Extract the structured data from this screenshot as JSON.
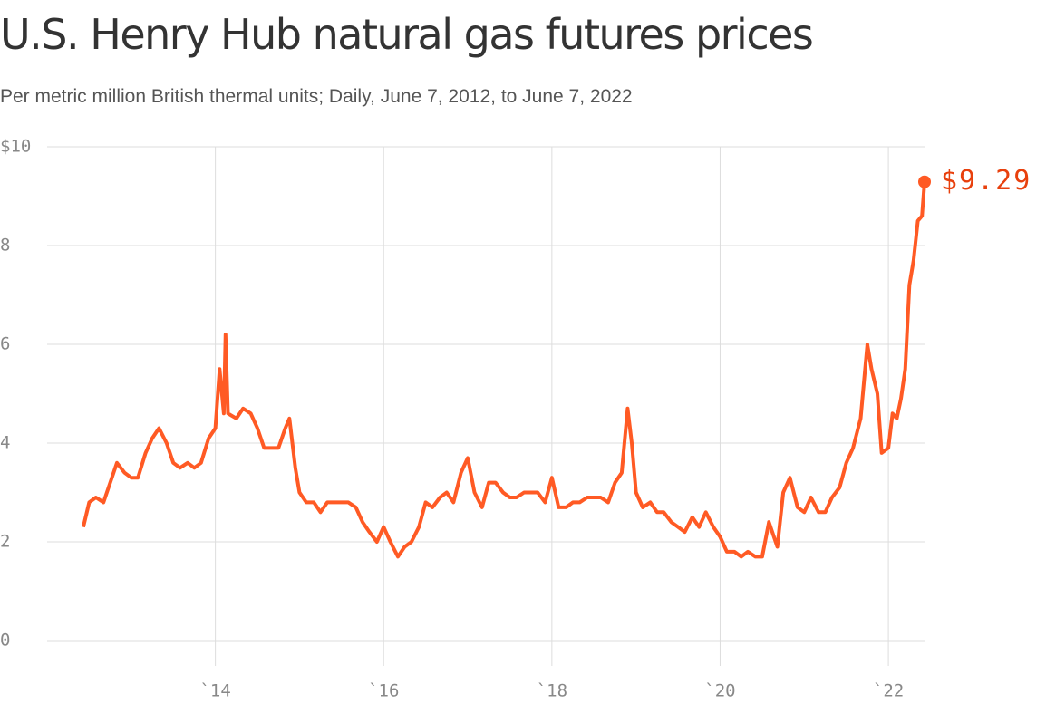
{
  "chart_data": {
    "type": "line",
    "title": "U.S. Henry Hub natural gas futures prices",
    "subtitle": "Per metric million British thermal units; Daily, June 7, 2012, to June 7, 2022",
    "x": [
      2012.43,
      2012.5,
      2012.58,
      2012.67,
      2012.75,
      2012.83,
      2012.92,
      2013.0,
      2013.08,
      2013.17,
      2013.25,
      2013.33,
      2013.42,
      2013.5,
      2013.58,
      2013.67,
      2013.75,
      2013.83,
      2013.92,
      2014.0,
      2014.05,
      2014.1,
      2014.12,
      2014.15,
      2014.25,
      2014.33,
      2014.42,
      2014.5,
      2014.58,
      2014.67,
      2014.75,
      2014.83,
      2014.88,
      2014.95,
      2015.0,
      2015.08,
      2015.17,
      2015.25,
      2015.33,
      2015.42,
      2015.5,
      2015.58,
      2015.67,
      2015.75,
      2015.83,
      2015.92,
      2016.0,
      2016.08,
      2016.17,
      2016.25,
      2016.33,
      2016.42,
      2016.5,
      2016.58,
      2016.67,
      2016.75,
      2016.83,
      2016.92,
      2017.0,
      2017.08,
      2017.17,
      2017.25,
      2017.33,
      2017.42,
      2017.5,
      2017.58,
      2017.67,
      2017.75,
      2017.83,
      2017.92,
      2018.0,
      2018.08,
      2018.17,
      2018.25,
      2018.33,
      2018.42,
      2018.5,
      2018.58,
      2018.67,
      2018.75,
      2018.83,
      2018.9,
      2018.95,
      2019.0,
      2019.08,
      2019.17,
      2019.25,
      2019.33,
      2019.42,
      2019.5,
      2019.58,
      2019.67,
      2019.75,
      2019.83,
      2019.92,
      2020.0,
      2020.08,
      2020.17,
      2020.25,
      2020.33,
      2020.42,
      2020.5,
      2020.58,
      2020.68,
      2020.75,
      2020.83,
      2020.92,
      2021.0,
      2021.08,
      2021.17,
      2021.25,
      2021.33,
      2021.42,
      2021.5,
      2021.58,
      2021.67,
      2021.75,
      2021.8,
      2021.87,
      2021.92,
      2022.0,
      2022.05,
      2022.1,
      2022.15,
      2022.2,
      2022.25,
      2022.3,
      2022.35,
      2022.4,
      2022.43
    ],
    "series": [
      {
        "name": "Henry Hub",
        "color": "#ff5a24",
        "values": [
          2.3,
          2.8,
          2.9,
          2.8,
          3.2,
          3.6,
          3.4,
          3.3,
          3.3,
          3.8,
          4.1,
          4.3,
          4.0,
          3.6,
          3.5,
          3.6,
          3.5,
          3.6,
          4.1,
          4.3,
          5.5,
          4.6,
          6.2,
          4.6,
          4.5,
          4.7,
          4.6,
          4.3,
          3.9,
          3.9,
          3.9,
          4.3,
          4.5,
          3.5,
          3.0,
          2.8,
          2.8,
          2.6,
          2.8,
          2.8,
          2.8,
          2.8,
          2.7,
          2.4,
          2.2,
          2.0,
          2.3,
          2.0,
          1.7,
          1.9,
          2.0,
          2.3,
          2.8,
          2.7,
          2.9,
          3.0,
          2.8,
          3.4,
          3.7,
          3.0,
          2.7,
          3.2,
          3.2,
          3.0,
          2.9,
          2.9,
          3.0,
          3.0,
          3.0,
          2.8,
          3.3,
          2.7,
          2.7,
          2.8,
          2.8,
          2.9,
          2.9,
          2.9,
          2.8,
          3.2,
          3.4,
          4.7,
          4.0,
          3.0,
          2.7,
          2.8,
          2.6,
          2.6,
          2.4,
          2.3,
          2.2,
          2.5,
          2.3,
          2.6,
          2.3,
          2.1,
          1.8,
          1.8,
          1.7,
          1.8,
          1.7,
          1.7,
          2.4,
          1.9,
          3.0,
          3.3,
          2.7,
          2.6,
          2.9,
          2.6,
          2.6,
          2.9,
          3.1,
          3.6,
          3.9,
          4.5,
          6.0,
          5.5,
          5.0,
          3.8,
          3.9,
          4.6,
          4.5,
          4.9,
          5.5,
          7.2,
          7.7,
          8.5,
          8.6,
          9.29
        ]
      }
    ],
    "annotations": [
      {
        "text": "$9.29"
      }
    ],
    "xlim": [
      2012,
      2022.43
    ],
    "xticks": [
      {
        "value": 2014,
        "label": "`14"
      },
      {
        "value": 2016,
        "label": "`16"
      },
      {
        "value": 2018,
        "label": "`18"
      },
      {
        "value": 2020,
        "label": "`20"
      },
      {
        "value": 2022,
        "label": "`22"
      }
    ],
    "ylim": [
      0,
      10
    ],
    "yticks": [
      0,
      2,
      4,
      6,
      8,
      {
        "value": 10,
        "label": "$10"
      }
    ],
    "grid": true
  }
}
